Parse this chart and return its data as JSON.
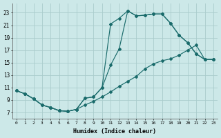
{
  "bg_color": "#cce8e8",
  "grid_color": "#aacccc",
  "line_color": "#1a6b6b",
  "xlabel": "Humidex (Indice chaleur)",
  "xlim": [
    -0.5,
    23.5
  ],
  "ylim": [
    6.0,
    24.5
  ],
  "xticks": [
    0,
    1,
    2,
    3,
    4,
    5,
    6,
    7,
    8,
    9,
    10,
    11,
    12,
    13,
    14,
    15,
    16,
    17,
    18,
    19,
    20,
    21,
    22,
    23
  ],
  "yticks": [
    7,
    9,
    11,
    13,
    15,
    17,
    19,
    21,
    23
  ],
  "curve1_x": [
    0,
    1,
    2,
    3,
    4,
    5,
    6,
    7,
    8,
    9,
    10,
    11,
    12,
    13,
    14,
    15,
    16,
    17,
    18,
    19,
    20,
    21,
    22,
    23
  ],
  "curve1_y": [
    10.5,
    10.0,
    9.2,
    8.2,
    7.8,
    7.3,
    7.2,
    7.5,
    9.3,
    9.5,
    11.0,
    21.2,
    22.1,
    23.3,
    22.5,
    22.6,
    22.8,
    22.8,
    21.3,
    19.4,
    18.2,
    16.4,
    15.5,
    15.5
  ],
  "curve2_x": [
    0,
    1,
    2,
    3,
    4,
    5,
    6,
    7,
    8,
    9,
    10,
    11,
    12,
    13,
    14,
    15,
    16,
    17,
    18,
    19,
    20,
    21,
    22,
    23
  ],
  "curve2_y": [
    10.5,
    10.0,
    9.2,
    8.2,
    7.8,
    7.3,
    7.2,
    7.5,
    9.3,
    9.5,
    11.0,
    14.6,
    17.2,
    23.3,
    22.5,
    22.6,
    22.8,
    22.8,
    21.3,
    19.4,
    18.2,
    16.4,
    15.5,
    15.5
  ],
  "curve3_x": [
    0,
    1,
    2,
    3,
    4,
    5,
    6,
    7,
    8,
    9,
    10,
    11,
    12,
    13,
    14,
    15,
    16,
    17,
    18,
    19,
    20,
    21,
    22,
    23
  ],
  "curve3_y": [
    10.5,
    10.0,
    9.2,
    8.2,
    7.8,
    7.3,
    7.2,
    7.5,
    8.2,
    8.8,
    9.5,
    10.3,
    11.2,
    12.0,
    12.8,
    14.0,
    14.8,
    15.3,
    15.6,
    16.2,
    17.0,
    17.8,
    15.5,
    15.5
  ]
}
